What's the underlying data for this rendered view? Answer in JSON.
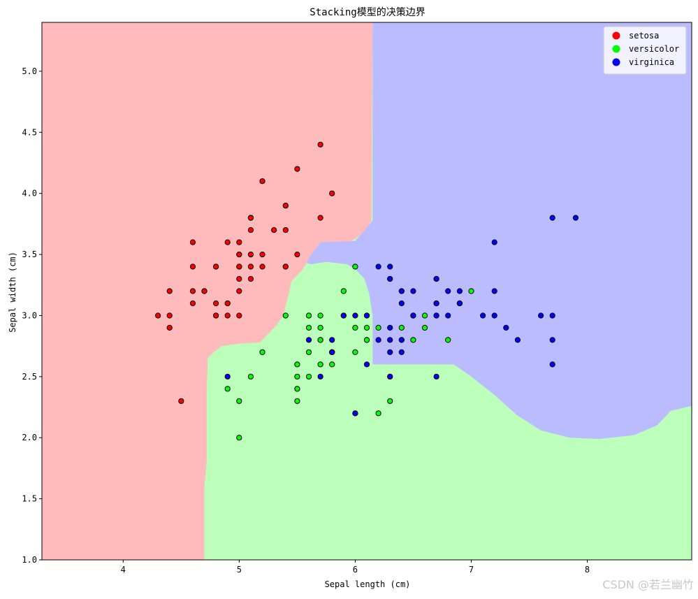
{
  "chart_data": {
    "type": "scatter",
    "title": "Stacking模型的决策边界",
    "xlabel": "Sepal length (cm)",
    "ylabel": "Sepal width (cm)",
    "xlim": [
      3.3,
      8.9
    ],
    "ylim": [
      1.0,
      5.4
    ],
    "xticks": [
      4,
      5,
      6,
      7,
      8
    ],
    "yticks": [
      1.0,
      1.5,
      2.0,
      2.5,
      3.0,
      3.5,
      4.0,
      4.5,
      5.0
    ],
    "legend_position": "top-right",
    "classes": [
      {
        "name": "setosa",
        "color": "#ff0000",
        "region_color": "#ffbbbb"
      },
      {
        "name": "versicolor",
        "color": "#00ff00",
        "region_color": "#bbffbb"
      },
      {
        "name": "virginica",
        "color": "#0000ff",
        "region_color": "#bbbbff"
      }
    ],
    "decision_regions": {
      "setosa": [
        [
          3.3,
          1.0
        ],
        [
          4.7,
          1.0
        ],
        [
          4.7,
          1.6
        ],
        [
          4.72,
          1.8
        ],
        [
          4.72,
          2.4
        ],
        [
          4.73,
          2.65
        ],
        [
          4.78,
          2.7
        ],
        [
          4.85,
          2.75
        ],
        [
          5.0,
          2.77
        ],
        [
          5.18,
          2.78
        ],
        [
          5.25,
          2.85
        ],
        [
          5.32,
          2.92
        ],
        [
          5.38,
          3.0
        ],
        [
          5.42,
          3.15
        ],
        [
          5.45,
          3.28
        ],
        [
          5.55,
          3.38
        ],
        [
          5.62,
          3.5
        ],
        [
          5.75,
          3.58
        ],
        [
          5.95,
          3.6
        ],
        [
          6.08,
          3.68
        ],
        [
          6.14,
          3.78
        ],
        [
          6.15,
          5.4
        ],
        [
          3.3,
          5.4
        ]
      ],
      "virginica": [
        [
          6.15,
          5.4
        ],
        [
          6.15,
          3.78
        ],
        [
          6.1,
          3.72
        ],
        [
          6.0,
          3.61
        ],
        [
          5.7,
          3.6
        ],
        [
          5.62,
          3.5
        ],
        [
          5.58,
          3.43
        ],
        [
          5.62,
          3.42
        ],
        [
          5.75,
          3.44
        ],
        [
          5.93,
          3.42
        ],
        [
          6.0,
          3.38
        ],
        [
          6.08,
          3.3
        ],
        [
          6.12,
          3.18
        ],
        [
          6.15,
          3.0
        ],
        [
          6.15,
          2.6
        ],
        [
          6.5,
          2.6
        ],
        [
          6.85,
          2.6
        ],
        [
          7.0,
          2.5
        ],
        [
          7.2,
          2.35
        ],
        [
          7.4,
          2.18
        ],
        [
          7.6,
          2.06
        ],
        [
          7.85,
          2.0
        ],
        [
          8.1,
          1.99
        ],
        [
          8.4,
          2.02
        ],
        [
          8.6,
          2.1
        ],
        [
          8.72,
          2.22
        ],
        [
          8.9,
          2.26
        ],
        [
          8.9,
          5.4
        ]
      ],
      "versicolor_background": true
    },
    "points": {
      "setosa": [
        [
          5.1,
          3.5
        ],
        [
          4.9,
          3.0
        ],
        [
          4.7,
          3.2
        ],
        [
          4.6,
          3.1
        ],
        [
          5.0,
          3.6
        ],
        [
          5.4,
          3.9
        ],
        [
          4.6,
          3.4
        ],
        [
          5.0,
          3.4
        ],
        [
          4.4,
          2.9
        ],
        [
          4.9,
          3.1
        ],
        [
          5.4,
          3.7
        ],
        [
          4.8,
          3.4
        ],
        [
          4.8,
          3.0
        ],
        [
          4.3,
          3.0
        ],
        [
          5.8,
          4.0
        ],
        [
          5.7,
          4.4
        ],
        [
          5.4,
          3.9
        ],
        [
          5.1,
          3.5
        ],
        [
          5.7,
          3.8
        ],
        [
          5.1,
          3.8
        ],
        [
          5.4,
          3.4
        ],
        [
          5.1,
          3.7
        ],
        [
          4.6,
          3.6
        ],
        [
          5.1,
          3.3
        ],
        [
          4.8,
          3.4
        ],
        [
          5.0,
          3.0
        ],
        [
          5.0,
          3.4
        ],
        [
          5.2,
          3.5
        ],
        [
          5.2,
          3.4
        ],
        [
          4.7,
          3.2
        ],
        [
          4.8,
          3.1
        ],
        [
          5.4,
          3.4
        ],
        [
          5.2,
          4.1
        ],
        [
          5.5,
          4.2
        ],
        [
          4.9,
          3.1
        ],
        [
          5.0,
          3.2
        ],
        [
          5.5,
          3.5
        ],
        [
          4.9,
          3.6
        ],
        [
          4.4,
          3.0
        ],
        [
          5.1,
          3.4
        ],
        [
          5.0,
          3.5
        ],
        [
          4.5,
          2.3
        ],
        [
          4.4,
          3.2
        ],
        [
          5.0,
          3.5
        ],
        [
          5.1,
          3.8
        ],
        [
          4.8,
          3.0
        ],
        [
          5.1,
          3.8
        ],
        [
          4.6,
          3.2
        ],
        [
          5.3,
          3.7
        ],
        [
          5.0,
          3.3
        ]
      ],
      "versicolor": [
        [
          7.0,
          3.2
        ],
        [
          6.4,
          3.2
        ],
        [
          6.9,
          3.1
        ],
        [
          5.5,
          2.3
        ],
        [
          6.5,
          2.8
        ],
        [
          5.7,
          2.8
        ],
        [
          6.3,
          3.3
        ],
        [
          4.9,
          2.4
        ],
        [
          6.6,
          2.9
        ],
        [
          5.2,
          2.7
        ],
        [
          5.0,
          2.0
        ],
        [
          5.9,
          3.0
        ],
        [
          6.0,
          2.2
        ],
        [
          6.1,
          2.9
        ],
        [
          5.6,
          2.9
        ],
        [
          6.7,
          3.1
        ],
        [
          5.6,
          3.0
        ],
        [
          5.8,
          2.7
        ],
        [
          6.2,
          2.2
        ],
        [
          5.6,
          2.5
        ],
        [
          5.9,
          3.2
        ],
        [
          6.1,
          2.8
        ],
        [
          6.3,
          2.5
        ],
        [
          6.1,
          2.8
        ],
        [
          6.4,
          2.9
        ],
        [
          6.6,
          3.0
        ],
        [
          6.8,
          2.8
        ],
        [
          6.7,
          3.0
        ],
        [
          6.0,
          2.9
        ],
        [
          5.7,
          2.6
        ],
        [
          5.5,
          2.4
        ],
        [
          5.5,
          2.4
        ],
        [
          5.8,
          2.7
        ],
        [
          6.0,
          2.7
        ],
        [
          5.4,
          3.0
        ],
        [
          6.0,
          3.4
        ],
        [
          6.7,
          3.1
        ],
        [
          6.3,
          2.3
        ],
        [
          5.6,
          3.0
        ],
        [
          5.5,
          2.5
        ],
        [
          5.5,
          2.6
        ],
        [
          6.1,
          3.0
        ],
        [
          5.8,
          2.6
        ],
        [
          5.0,
          2.3
        ],
        [
          5.6,
          2.7
        ],
        [
          5.7,
          3.0
        ],
        [
          5.7,
          2.9
        ],
        [
          6.2,
          2.9
        ],
        [
          5.1,
          2.5
        ],
        [
          5.7,
          2.8
        ]
      ],
      "virginica": [
        [
          6.3,
          3.3
        ],
        [
          5.8,
          2.7
        ],
        [
          7.1,
          3.0
        ],
        [
          6.3,
          2.9
        ],
        [
          6.5,
          3.0
        ],
        [
          7.6,
          3.0
        ],
        [
          4.9,
          2.5
        ],
        [
          7.3,
          2.9
        ],
        [
          6.7,
          2.5
        ],
        [
          7.2,
          3.6
        ],
        [
          6.5,
          3.2
        ],
        [
          6.4,
          2.7
        ],
        [
          6.8,
          3.0
        ],
        [
          5.7,
          2.5
        ],
        [
          5.8,
          2.8
        ],
        [
          6.4,
          3.2
        ],
        [
          6.5,
          3.0
        ],
        [
          7.7,
          3.8
        ],
        [
          7.7,
          2.6
        ],
        [
          6.0,
          2.2
        ],
        [
          6.9,
          3.2
        ],
        [
          5.6,
          2.8
        ],
        [
          7.7,
          2.8
        ],
        [
          6.3,
          2.7
        ],
        [
          6.7,
          3.3
        ],
        [
          7.2,
          3.2
        ],
        [
          6.2,
          2.8
        ],
        [
          6.1,
          3.0
        ],
        [
          6.4,
          2.8
        ],
        [
          7.2,
          3.0
        ],
        [
          7.4,
          2.8
        ],
        [
          7.9,
          3.8
        ],
        [
          6.4,
          2.8
        ],
        [
          6.3,
          2.8
        ],
        [
          6.1,
          2.6
        ],
        [
          7.7,
          3.0
        ],
        [
          6.3,
          3.4
        ],
        [
          6.4,
          3.1
        ],
        [
          6.0,
          3.0
        ],
        [
          6.9,
          3.1
        ],
        [
          6.7,
          3.1
        ],
        [
          6.9,
          3.1
        ],
        [
          5.8,
          2.7
        ],
        [
          6.8,
          3.2
        ],
        [
          6.7,
          3.3
        ],
        [
          6.7,
          3.0
        ],
        [
          6.3,
          2.5
        ],
        [
          6.5,
          3.0
        ],
        [
          6.2,
          3.4
        ],
        [
          5.9,
          3.0
        ]
      ]
    }
  },
  "watermark": "CSDN @若兰幽竹"
}
